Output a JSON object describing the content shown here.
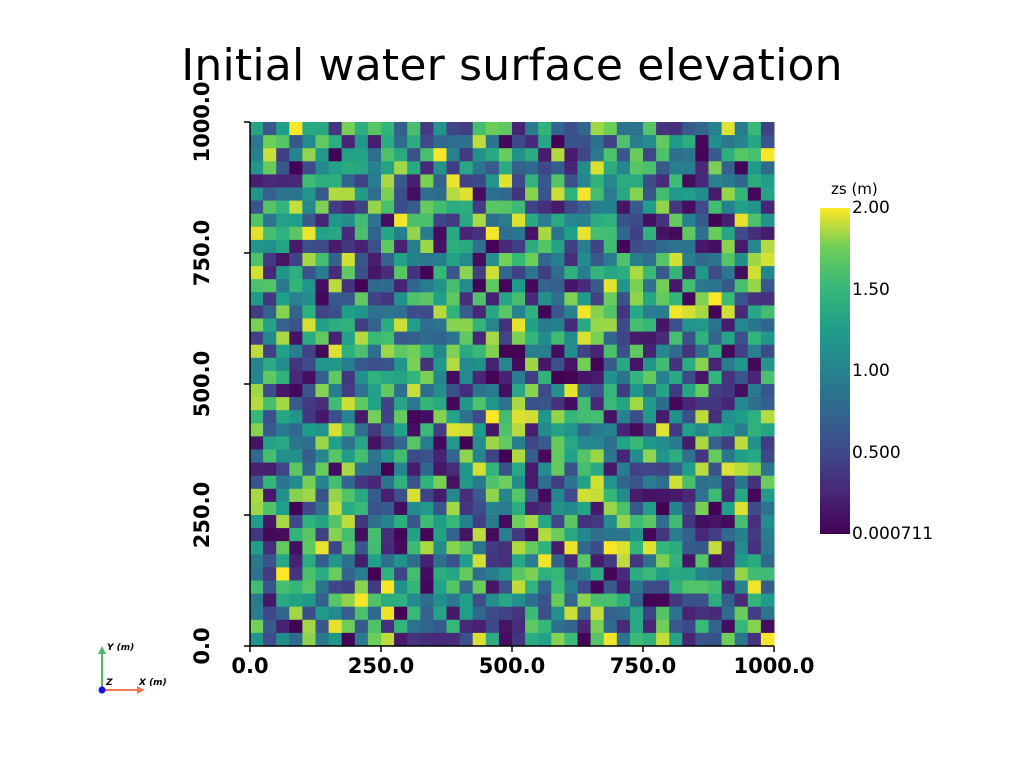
{
  "chart_data": {
    "type": "heatmap",
    "title": "Initial water surface elevation",
    "xlabel": "",
    "ylabel": "",
    "xlim": [
      0.0,
      1000.0
    ],
    "ylim": [
      0.0,
      1000.0
    ],
    "x_tick_labels": [
      "0.0",
      "250.0",
      "500.0",
      "750.0",
      "1000.0"
    ],
    "y_tick_labels": [
      "0.0",
      "250.0",
      "500.0",
      "750.0",
      "1000.0"
    ],
    "grid": false,
    "colorbar": {
      "title": "zs (m)",
      "range": [
        0.000711,
        2.0
      ],
      "colormap": "viridis",
      "tick_labels": [
        "2.00",
        "1.50",
        "1.00",
        "0.500",
        "0.000711"
      ],
      "tick_values": [
        2.0,
        1.5,
        1.0,
        0.5,
        0.000711
      ]
    },
    "grid_size": [
      40,
      40
    ],
    "note": "random field of cell values uniformly spread between 0.000711 and 2.00"
  },
  "orientation_widget": {
    "y_label": "Y (m)",
    "x_label": "X (m)",
    "z_label": "Z",
    "colors": {
      "y": "#4cbb6a",
      "x": "#ee7b54",
      "z": "#1414e0"
    }
  }
}
